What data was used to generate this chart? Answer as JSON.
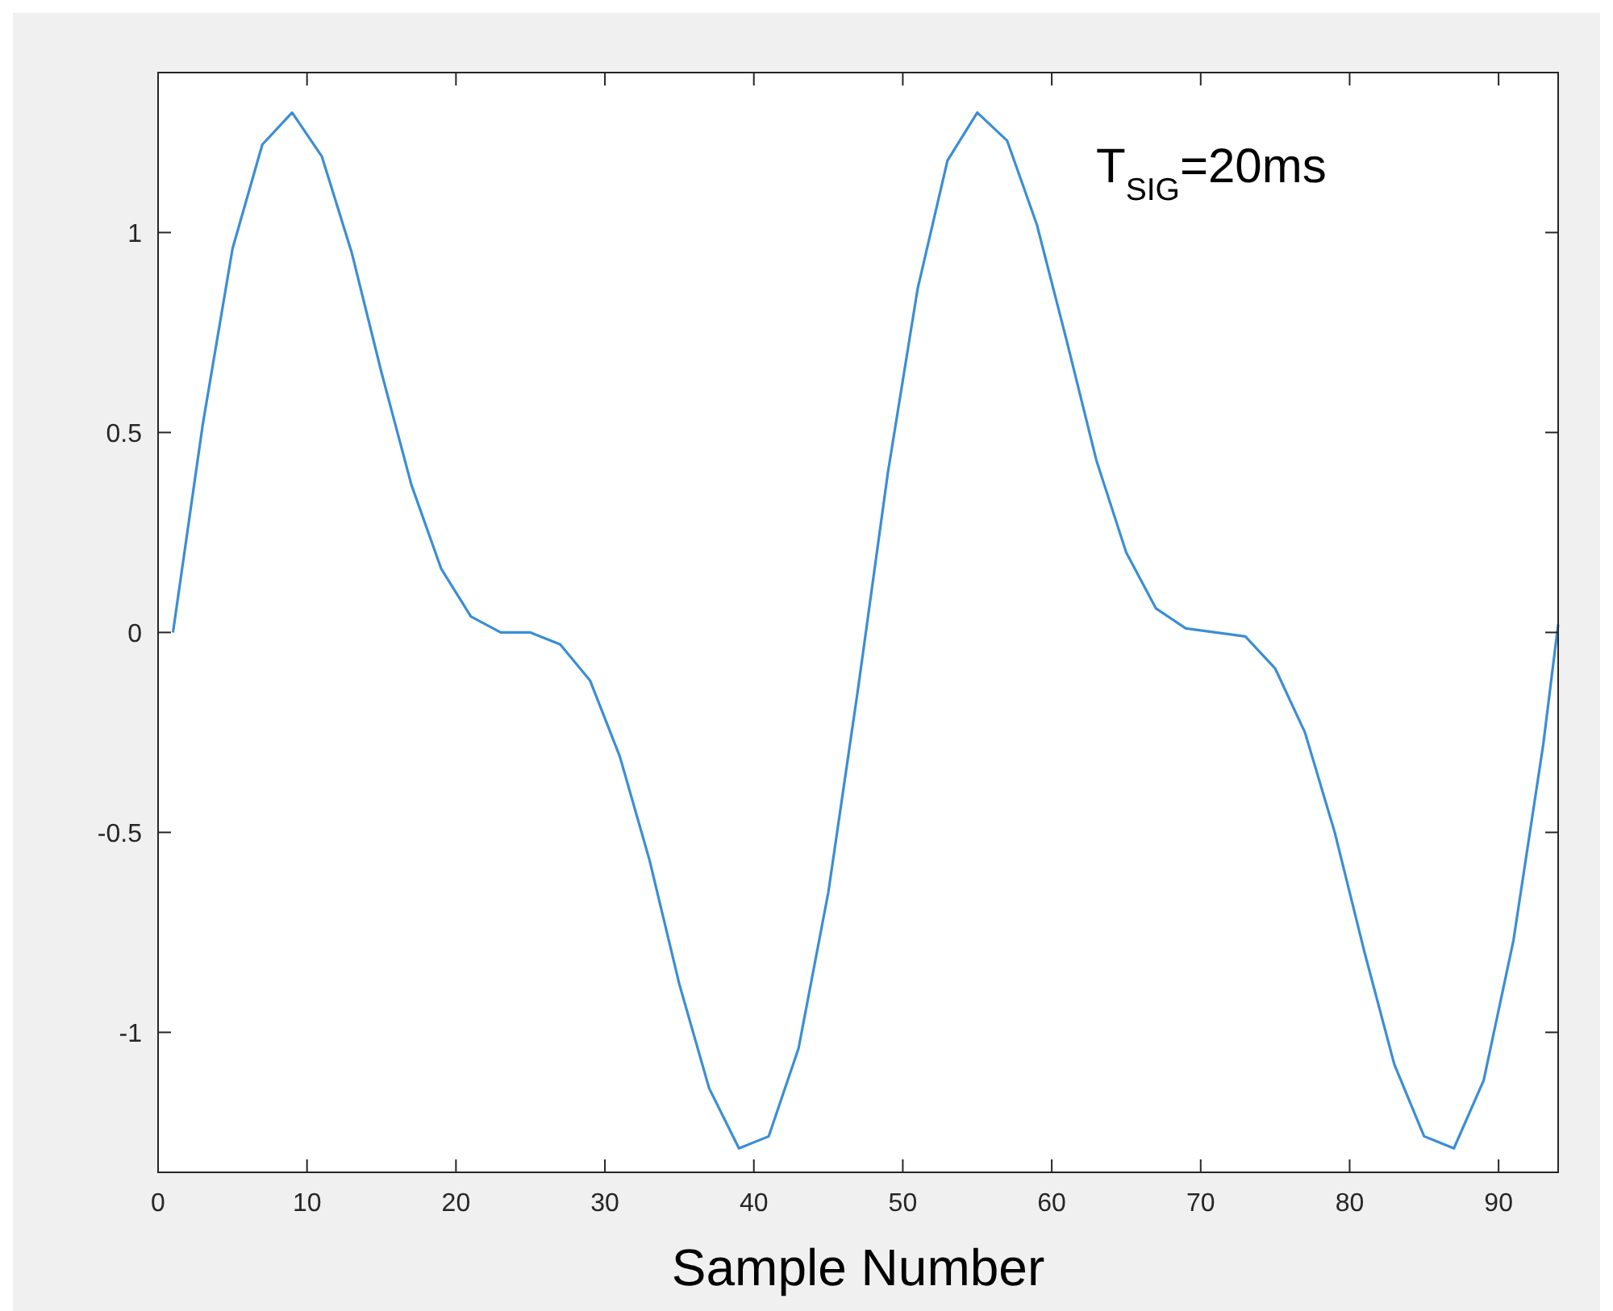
{
  "chart_data": {
    "type": "line",
    "xlabel": "Sample Number",
    "annotations": [
      "T$_{SIG}$=20ms"
    ],
    "x": [
      1,
      3,
      5,
      7,
      9,
      11,
      13,
      15,
      17,
      19,
      21,
      23,
      25,
      27,
      29,
      31,
      33,
      35,
      37,
      39,
      41,
      43,
      45,
      47,
      49,
      51,
      53,
      55,
      57,
      59,
      61,
      63,
      65,
      67,
      69,
      71,
      73,
      75,
      77,
      79,
      81,
      83,
      85,
      87,
      89,
      91,
      93,
      94
    ],
    "series": [
      {
        "color": "#3b8ed4",
        "values": [
          0,
          0.52,
          0.96,
          1.22,
          1.3,
          1.19,
          0.95,
          0.65,
          0.37,
          0.16,
          0.04,
          0,
          0,
          -0.03,
          -0.12,
          -0.31,
          -0.57,
          -0.88,
          -1.14,
          -1.29,
          -1.26,
          -1.04,
          -0.65,
          -0.14,
          0.4,
          0.86,
          1.18,
          1.3,
          1.23,
          1.02,
          0.73,
          0.43,
          0.2,
          0.06,
          0.01,
          0,
          -0.01,
          -0.09,
          -0.25,
          -0.5,
          -0.8,
          -1.08,
          -1.26,
          -1.29,
          -1.12,
          -0.77,
          -0.28,
          0.02
        ]
      }
    ],
    "xlim": [
      0,
      94
    ],
    "ylim": [
      -1.35,
      1.4
    ],
    "xticks": [
      0,
      10,
      20,
      30,
      40,
      50,
      60,
      70,
      80,
      90
    ],
    "yticks": [
      -1,
      -0.5,
      0,
      0.5,
      1
    ],
    "grid": false,
    "line_style": "solid",
    "marker": "none"
  }
}
